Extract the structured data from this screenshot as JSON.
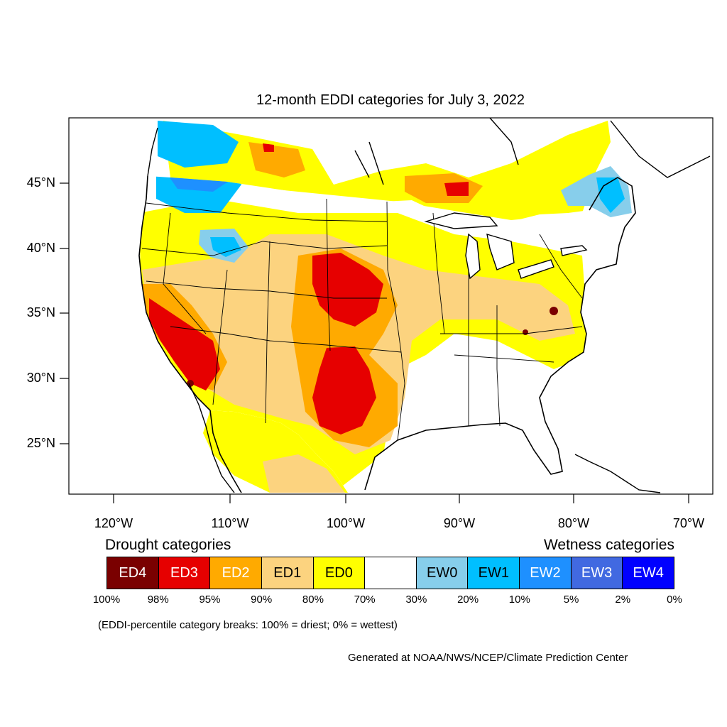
{
  "title": "12-month EDDI categories for July 3, 2022",
  "lat_labels": [
    "45°N",
    "40°N",
    "35°N",
    "30°N",
    "25°N"
  ],
  "lon_labels": [
    "120°W",
    "110°W",
    "100°W",
    "90°W",
    "80°W",
    "70°W"
  ],
  "legend": {
    "drought_heading": "Drought categories",
    "wetness_heading": "Wetness categories",
    "categories": [
      {
        "label": "ED4",
        "color": "#7a0000",
        "text_color": "#ffffff"
      },
      {
        "label": "ED3",
        "color": "#e60000",
        "text_color": "#ffffff"
      },
      {
        "label": "ED2",
        "color": "#ffaa00",
        "text_color": "#ffffff"
      },
      {
        "label": "ED1",
        "color": "#fcd37f",
        "text_color": "#000000"
      },
      {
        "label": "ED0",
        "color": "#ffff00",
        "text_color": "#000000"
      },
      {
        "label": "",
        "color": "#ffffff",
        "text_color": "#000000"
      },
      {
        "label": "EW0",
        "color": "#87ceeb",
        "text_color": "#000000"
      },
      {
        "label": "EW1",
        "color": "#00bfff",
        "text_color": "#000000"
      },
      {
        "label": "EW2",
        "color": "#1e90ff",
        "text_color": "#ffffff"
      },
      {
        "label": "EW3",
        "color": "#4169e1",
        "text_color": "#ffffff"
      },
      {
        "label": "EW4",
        "color": "#0000ff",
        "text_color": "#ffffff"
      }
    ],
    "percentiles": [
      "100%",
      "98%",
      "95%",
      "90%",
      "80%",
      "70%",
      "30%",
      "20%",
      "10%",
      "5%",
      "2%",
      "0%"
    ]
  },
  "note": "(EDDI-percentile category breaks: 100% = driest; 0% = wettest)",
  "credit": "Generated at NOAA/NWS/NCEP/Climate Prediction Center"
}
